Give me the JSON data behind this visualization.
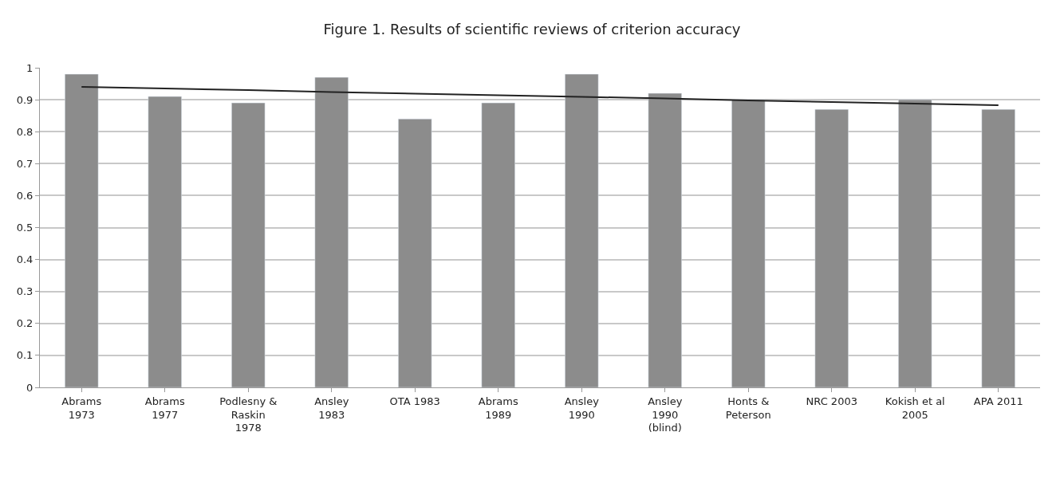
{
  "chart_data": {
    "type": "bar",
    "title": "Figure 1. Results of scientific reviews of criterion accuracy",
    "categories": [
      "Abrams\n1973",
      "Abrams\n1977",
      "Podlesny &\nRaskin\n1978",
      "Ansley\n1983",
      "OTA 1983",
      "Abrams\n1989",
      "Ansley\n1990",
      "Ansley\n1990\n(blind)",
      "Honts &\nPeterson",
      "NRC 2003",
      "Kokish et al\n2005",
      "APA 2011"
    ],
    "series": [
      {
        "color": "#8c8c8c",
        "values": [
          0.98,
          0.91,
          0.89,
          0.97,
          0.84,
          0.89,
          0.98,
          0.92,
          0.9,
          0.87,
          0.9,
          0.87
        ]
      },
      {
        "type": "line",
        "color": "#222222",
        "values": [
          0.94,
          0.935,
          0.93,
          0.924,
          0.919,
          0.914,
          0.909,
          0.904,
          0.898,
          0.893,
          0.888,
          0.883
        ]
      }
    ],
    "ylim": [
      0,
      1
    ],
    "yticks": [
      0,
      0.1,
      0.2,
      0.3,
      0.4,
      0.5,
      0.6,
      0.7,
      0.8,
      0.9,
      1
    ],
    "grid": "y"
  }
}
